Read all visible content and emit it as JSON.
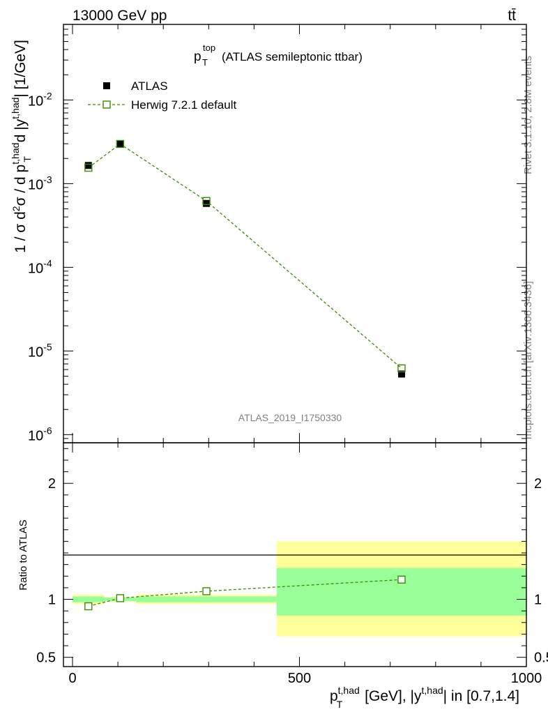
{
  "header": {
    "left_label": "13000 GeV pp",
    "right_label": "tt̄"
  },
  "side_labels": {
    "rivet": "Rivet 3.1.10,  2.8M events",
    "mcplots": "mcplots.cern.ch [arXiv:1306.3436]"
  },
  "analysis_id": "ATLAS_2019_I1750330",
  "colors": {
    "mc": "#3a8c00",
    "data": "#000000",
    "band_outer": "#ffff99",
    "band_inner": "#99ff99",
    "side_text": "#808080"
  },
  "chart_data": [
    {
      "type": "scatter",
      "panel": "main",
      "title_main": "p",
      "title_sub": "T",
      "title_sup": "top",
      "title_rest": " (ATLAS semileptonic ttbar)",
      "ylabel": "1 / σ d²σ / d p_T^{t,had} d |y^{t,had}| [1/GeV]",
      "yscale": "log",
      "ylim": [
        8e-07,
        0.08
      ],
      "xlim": [
        -20,
        1000
      ],
      "y_tick_labels": [
        "10",
        "10",
        "10",
        "10",
        "10"
      ],
      "y_tick_exps": [
        "-2",
        "-3",
        "-4",
        "-5",
        "-6"
      ],
      "y_tick_values": [
        0.01,
        0.001,
        0.0001,
        1e-05,
        1e-06
      ],
      "legend_position": "top-left",
      "series": [
        {
          "name": "ATLAS",
          "marker": "filled-square",
          "x": [
            35,
            105,
            295,
            725
          ],
          "y": [
            0.00165,
            0.00295,
            0.00058,
            5.3e-06
          ]
        },
        {
          "name": "Herwig 7.2.1 default",
          "marker": "open-square-dashed-line",
          "x": [
            35,
            105,
            295,
            725
          ],
          "y": [
            0.00155,
            0.00298,
            0.00062,
            6.2e-06
          ]
        }
      ]
    },
    {
      "type": "scatter",
      "panel": "ratio",
      "ylabel": "Ratio to ATLAS",
      "ylim": [
        0.42,
        2.35
      ],
      "y_tick_labels": [
        "2",
        "1",
        "0.5"
      ],
      "y_tick_values": [
        2,
        1,
        0.5
      ],
      "xlabel": "p_T^{t,had} [GeV], |y^{t,had}| in [0.7,1.4]",
      "xlabel_parts": [
        "p",
        "T",
        "t,had",
        " [GeV], |y",
        "t,had",
        "| in [0.7,1.4]"
      ],
      "x_tick_labels": [
        "0",
        "500",
        "1000"
      ],
      "x_tick_values": [
        0,
        500,
        1000
      ],
      "uncertainty_bands": [
        {
          "x_low": 0,
          "x_high": 70,
          "outer": [
            0.96,
            1.04
          ],
          "inner": [
            0.975,
            1.025
          ]
        },
        {
          "x_low": 70,
          "x_high": 140,
          "outer": [
            0.98,
            1.02
          ],
          "inner": [
            0.985,
            1.015
          ]
        },
        {
          "x_low": 140,
          "x_high": 450,
          "outer": [
            0.96,
            1.04
          ],
          "inner": [
            0.975,
            1.025
          ]
        },
        {
          "x_low": 450,
          "x_high": 1000,
          "outer": [
            0.68,
            1.5
          ],
          "inner": [
            0.86,
            1.27
          ]
        }
      ],
      "series": [
        {
          "name": "Herwig 7.2.1 default / ATLAS",
          "x": [
            35,
            105,
            295,
            725
          ],
          "y": [
            0.94,
            1.01,
            1.07,
            1.17
          ]
        }
      ]
    }
  ]
}
